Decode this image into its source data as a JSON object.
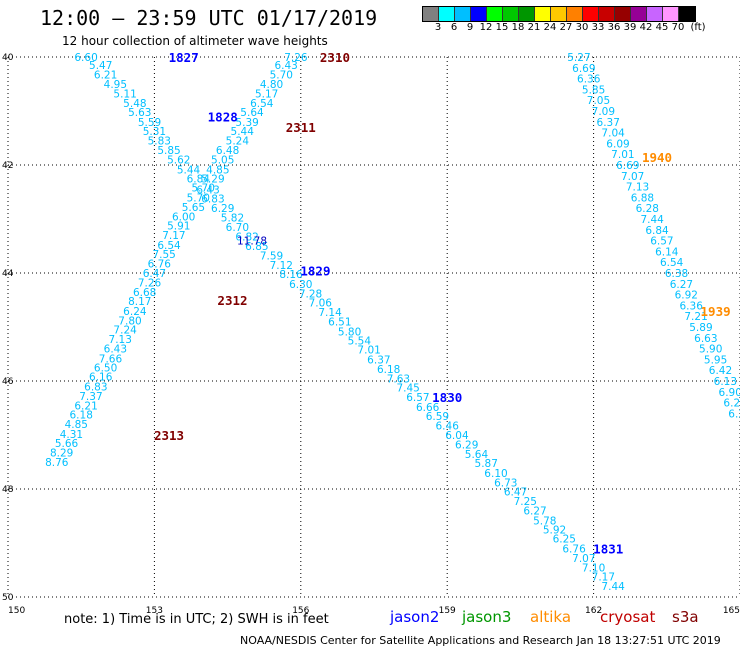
{
  "header": {
    "title": "12:00 – 23:59 UTC 01/17/2019",
    "subtitle": "12 hour collection of altimeter wave heights"
  },
  "legend": {
    "colors": [
      "#808080",
      "#00ffff",
      "#00bfff",
      "#0000ff",
      "#00ff00",
      "#00c800",
      "#009600",
      "#ffff00",
      "#ffc800",
      "#ff8000",
      "#ff0000",
      "#c80000",
      "#960000",
      "#960096",
      "#c864ff",
      "#ff96ff",
      "#000000"
    ],
    "labels": [
      "3",
      "6",
      "9",
      "12",
      "15",
      "18",
      "21",
      "24",
      "27",
      "30",
      "33",
      "36",
      "39",
      "42",
      "45",
      "70",
      "(ft)"
    ]
  },
  "axes": {
    "x_labels": [
      "150",
      "153",
      "156",
      "159",
      "162",
      "165"
    ],
    "y_labels": [
      "40",
      "42",
      "44",
      "46",
      "48",
      "50"
    ]
  },
  "chart_data": {
    "type": "scatter",
    "track_color": "#00bfff",
    "points": [
      {
        "lon": 151.6,
        "lat": 40.0,
        "v": "6.60"
      },
      {
        "lon": 151.9,
        "lat": 40.15,
        "v": "5.47"
      },
      {
        "lon": 152.0,
        "lat": 40.32,
        "v": "6.21"
      },
      {
        "lon": 152.2,
        "lat": 40.5,
        "v": "4.95"
      },
      {
        "lon": 152.4,
        "lat": 40.68,
        "v": "5.11"
      },
      {
        "lon": 152.6,
        "lat": 40.85,
        "v": "5.48"
      },
      {
        "lon": 152.7,
        "lat": 41.02,
        "v": "5.63"
      },
      {
        "lon": 152.9,
        "lat": 41.2,
        "v": "5.59"
      },
      {
        "lon": 153.0,
        "lat": 41.37,
        "v": "5.31"
      },
      {
        "lon": 153.1,
        "lat": 41.55,
        "v": "5.83"
      },
      {
        "lon": 153.3,
        "lat": 41.72,
        "v": "5.85"
      },
      {
        "lon": 153.5,
        "lat": 41.9,
        "v": "5.62"
      },
      {
        "lon": 153.7,
        "lat": 42.08,
        "v": "5.44"
      },
      {
        "lon": 153.9,
        "lat": 42.25,
        "v": "6.84"
      },
      {
        "lon": 154.1,
        "lat": 42.45,
        "v": "6.43"
      },
      {
        "lon": 154.2,
        "lat": 42.62,
        "v": "6.83"
      },
      {
        "lon": 154.4,
        "lat": 42.8,
        "v": "6.29"
      },
      {
        "lon": 154.6,
        "lat": 42.97,
        "v": "5.82"
      },
      {
        "lon": 154.7,
        "lat": 43.15,
        "v": "6.70"
      },
      {
        "lon": 154.9,
        "lat": 43.32,
        "v": "6.82"
      },
      {
        "lon": 155.1,
        "lat": 43.5,
        "v": "6.85"
      },
      {
        "lon": 155.4,
        "lat": 43.68,
        "v": "7.59"
      },
      {
        "lon": 155.6,
        "lat": 43.85,
        "v": "7.12"
      },
      {
        "lon": 155.8,
        "lat": 44.02,
        "v": "8.16"
      },
      {
        "lon": 156.0,
        "lat": 44.2,
        "v": "6.30"
      },
      {
        "lon": 156.2,
        "lat": 44.38,
        "v": "7.28"
      },
      {
        "lon": 156.4,
        "lat": 44.55,
        "v": "7.06"
      },
      {
        "lon": 156.6,
        "lat": 44.72,
        "v": "7.14"
      },
      {
        "lon": 156.8,
        "lat": 44.9,
        "v": "6.51"
      },
      {
        "lon": 157.0,
        "lat": 45.08,
        "v": "5.80"
      },
      {
        "lon": 157.2,
        "lat": 45.25,
        "v": "5.54"
      },
      {
        "lon": 157.4,
        "lat": 45.42,
        "v": "7.01"
      },
      {
        "lon": 157.6,
        "lat": 45.6,
        "v": "6.37"
      },
      {
        "lon": 157.8,
        "lat": 45.78,
        "v": "6.18"
      },
      {
        "lon": 158.0,
        "lat": 45.95,
        "v": "7.63"
      },
      {
        "lon": 158.2,
        "lat": 46.12,
        "v": "7.45"
      },
      {
        "lon": 158.4,
        "lat": 46.3,
        "v": "6.57"
      },
      {
        "lon": 158.6,
        "lat": 46.48,
        "v": "6.66"
      },
      {
        "lon": 158.8,
        "lat": 46.65,
        "v": "6.59"
      },
      {
        "lon": 159.0,
        "lat": 46.82,
        "v": "6.46"
      },
      {
        "lon": 159.2,
        "lat": 47.0,
        "v": "6.04"
      },
      {
        "lon": 159.4,
        "lat": 47.18,
        "v": "6.29"
      },
      {
        "lon": 159.6,
        "lat": 47.35,
        "v": "5.64"
      },
      {
        "lon": 159.8,
        "lat": 47.52,
        "v": "5.87"
      },
      {
        "lon": 160.0,
        "lat": 47.7,
        "v": "6.10"
      },
      {
        "lon": 160.2,
        "lat": 47.88,
        "v": "6.73"
      },
      {
        "lon": 160.4,
        "lat": 48.05,
        "v": "6.47"
      },
      {
        "lon": 160.6,
        "lat": 48.22,
        "v": "7.25"
      },
      {
        "lon": 160.8,
        "lat": 48.4,
        "v": "6.27"
      },
      {
        "lon": 161.0,
        "lat": 48.58,
        "v": "5.78"
      },
      {
        "lon": 161.2,
        "lat": 48.75,
        "v": "5.92"
      },
      {
        "lon": 161.4,
        "lat": 48.92,
        "v": "6.25"
      },
      {
        "lon": 161.6,
        "lat": 49.1,
        "v": "6.76"
      },
      {
        "lon": 161.8,
        "lat": 49.28,
        "v": "7.07"
      },
      {
        "lon": 162.0,
        "lat": 49.45,
        "v": "7.10"
      },
      {
        "lon": 162.2,
        "lat": 49.62,
        "v": "7.17"
      },
      {
        "lon": 162.4,
        "lat": 49.8,
        "v": "7.44"
      },
      {
        "lon": 155.9,
        "lat": 40.0,
        "v": "7.26"
      },
      {
        "lon": 155.7,
        "lat": 40.15,
        "v": "6.43"
      },
      {
        "lon": 155.6,
        "lat": 40.32,
        "v": "5.70"
      },
      {
        "lon": 155.4,
        "lat": 40.5,
        "v": "4.80"
      },
      {
        "lon": 155.3,
        "lat": 40.68,
        "v": "5.17"
      },
      {
        "lon": 155.2,
        "lat": 40.85,
        "v": "6.54"
      },
      {
        "lon": 155.0,
        "lat": 41.02,
        "v": "5.64"
      },
      {
        "lon": 154.9,
        "lat": 41.2,
        "v": "5.39"
      },
      {
        "lon": 154.8,
        "lat": 41.37,
        "v": "5.44"
      },
      {
        "lon": 154.7,
        "lat": 41.55,
        "v": "5.24"
      },
      {
        "lon": 154.5,
        "lat": 41.72,
        "v": "6.48"
      },
      {
        "lon": 154.4,
        "lat": 41.9,
        "v": "5.05"
      },
      {
        "lon": 154.3,
        "lat": 42.08,
        "v": "4.85"
      },
      {
        "lon": 154.2,
        "lat": 42.25,
        "v": "5.29"
      },
      {
        "lon": 154.0,
        "lat": 42.42,
        "v": "5.70"
      },
      {
        "lon": 153.9,
        "lat": 42.6,
        "v": "5.70"
      },
      {
        "lon": 153.8,
        "lat": 42.78,
        "v": "5.65"
      },
      {
        "lon": 153.6,
        "lat": 42.95,
        "v": "6.00"
      },
      {
        "lon": 153.5,
        "lat": 43.12,
        "v": "5.91"
      },
      {
        "lon": 153.4,
        "lat": 43.3,
        "v": "7.17"
      },
      {
        "lon": 153.3,
        "lat": 43.48,
        "v": "6.54"
      },
      {
        "lon": 153.2,
        "lat": 43.65,
        "v": "7.55"
      },
      {
        "lon": 153.1,
        "lat": 43.82,
        "v": "6.76"
      },
      {
        "lon": 153.0,
        "lat": 44.0,
        "v": "6.47"
      },
      {
        "lon": 152.9,
        "lat": 44.18,
        "v": "7.26"
      },
      {
        "lon": 152.8,
        "lat": 44.35,
        "v": "6.68"
      },
      {
        "lon": 152.7,
        "lat": 44.52,
        "v": "8.17"
      },
      {
        "lon": 152.6,
        "lat": 44.7,
        "v": "6.24"
      },
      {
        "lon": 152.5,
        "lat": 44.88,
        "v": "7.80"
      },
      {
        "lon": 152.4,
        "lat": 45.05,
        "v": "7.24"
      },
      {
        "lon": 152.3,
        "lat": 45.22,
        "v": "7.13"
      },
      {
        "lon": 152.2,
        "lat": 45.4,
        "v": "6.43"
      },
      {
        "lon": 152.1,
        "lat": 45.58,
        "v": "7.66"
      },
      {
        "lon": 152.0,
        "lat": 45.75,
        "v": "6.50"
      },
      {
        "lon": 151.9,
        "lat": 45.92,
        "v": "6.16"
      },
      {
        "lon": 151.8,
        "lat": 46.1,
        "v": "6.83"
      },
      {
        "lon": 151.7,
        "lat": 46.28,
        "v": "7.37"
      },
      {
        "lon": 151.6,
        "lat": 46.45,
        "v": "6.21"
      },
      {
        "lon": 151.5,
        "lat": 46.62,
        "v": "6.18"
      },
      {
        "lon": 151.4,
        "lat": 46.8,
        "v": "4.85"
      },
      {
        "lon": 151.3,
        "lat": 46.98,
        "v": "4.31"
      },
      {
        "lon": 151.2,
        "lat": 47.15,
        "v": "5.66"
      },
      {
        "lon": 151.1,
        "lat": 47.32,
        "v": "8.29"
      },
      {
        "lon": 151.0,
        "lat": 47.5,
        "v": "8.76"
      },
      {
        "lon": 161.7,
        "lat": 40.0,
        "v": "5.27"
      },
      {
        "lon": 161.8,
        "lat": 40.2,
        "v": "6.69"
      },
      {
        "lon": 161.9,
        "lat": 40.4,
        "v": "6.36"
      },
      {
        "lon": 162.0,
        "lat": 40.6,
        "v": "5.85"
      },
      {
        "lon": 162.1,
        "lat": 40.8,
        "v": "7.05"
      },
      {
        "lon": 162.2,
        "lat": 41.0,
        "v": "7.09"
      },
      {
        "lon": 162.3,
        "lat": 41.2,
        "v": "6.37"
      },
      {
        "lon": 162.4,
        "lat": 41.4,
        "v": "7.04"
      },
      {
        "lon": 162.5,
        "lat": 41.6,
        "v": "6.09"
      },
      {
        "lon": 162.6,
        "lat": 41.8,
        "v": "7.01"
      },
      {
        "lon": 162.7,
        "lat": 42.0,
        "v": "6.69"
      },
      {
        "lon": 162.8,
        "lat": 42.2,
        "v": "7.07"
      },
      {
        "lon": 162.9,
        "lat": 42.4,
        "v": "7.13"
      },
      {
        "lon": 163.0,
        "lat": 42.6,
        "v": "6.88"
      },
      {
        "lon": 163.1,
        "lat": 42.8,
        "v": "6.28"
      },
      {
        "lon": 163.2,
        "lat": 43.0,
        "v": "7.44"
      },
      {
        "lon": 163.3,
        "lat": 43.2,
        "v": "6.84"
      },
      {
        "lon": 163.4,
        "lat": 43.4,
        "v": "6.57"
      },
      {
        "lon": 163.5,
        "lat": 43.6,
        "v": "6.14"
      },
      {
        "lon": 163.6,
        "lat": 43.8,
        "v": "6.54"
      },
      {
        "lon": 163.7,
        "lat": 44.0,
        "v": "6.38"
      },
      {
        "lon": 163.8,
        "lat": 44.2,
        "v": "6.27"
      },
      {
        "lon": 163.9,
        "lat": 44.4,
        "v": "6.92"
      },
      {
        "lon": 164.0,
        "lat": 44.6,
        "v": "6.36"
      },
      {
        "lon": 164.1,
        "lat": 44.8,
        "v": "7.21"
      },
      {
        "lon": 164.2,
        "lat": 45.0,
        "v": "5.89"
      },
      {
        "lon": 164.3,
        "lat": 45.2,
        "v": "6.63"
      },
      {
        "lon": 164.4,
        "lat": 45.4,
        "v": "5.90"
      },
      {
        "lon": 164.5,
        "lat": 45.6,
        "v": "5.95"
      },
      {
        "lon": 164.6,
        "lat": 45.8,
        "v": "6.42"
      },
      {
        "lon": 164.7,
        "lat": 46.0,
        "v": "6.13"
      },
      {
        "lon": 164.8,
        "lat": 46.2,
        "v": "6.90"
      },
      {
        "lon": 164.9,
        "lat": 46.4,
        "v": "6.23"
      },
      {
        "lon": 165.0,
        "lat": 46.6,
        "v": "6.33"
      }
    ],
    "highlight_point": {
      "lon": 155.0,
      "lat": 43.4,
      "v": "11.78",
      "color": "#0000c0"
    },
    "time_labels": [
      {
        "lon": 153.6,
        "lat": 40.0,
        "t": "1827",
        "color": "#0000ff"
      },
      {
        "lon": 154.4,
        "lat": 41.1,
        "t": "1828",
        "color": "#0000ff"
      },
      {
        "lon": 156.3,
        "lat": 43.95,
        "t": "1829",
        "color": "#0000ff"
      },
      {
        "lon": 159.0,
        "lat": 46.3,
        "t": "1830",
        "color": "#0000ff"
      },
      {
        "lon": 162.3,
        "lat": 49.1,
        "t": "1831",
        "color": "#0000ff"
      },
      {
        "lon": 156.7,
        "lat": 40.0,
        "t": "2310",
        "color": "#800000"
      },
      {
        "lon": 156.0,
        "lat": 41.3,
        "t": "2311",
        "color": "#800000"
      },
      {
        "lon": 154.6,
        "lat": 44.5,
        "t": "2312",
        "color": "#800000"
      },
      {
        "lon": 153.3,
        "lat": 47.0,
        "t": "2313",
        "color": "#800000"
      },
      {
        "lon": 163.3,
        "lat": 41.85,
        "t": "1940",
        "color": "#ff8c00"
      },
      {
        "lon": 164.5,
        "lat": 44.7,
        "t": "1939",
        "color": "#ff8c00"
      }
    ],
    "x_range": [
      150,
      165
    ],
    "y_range": [
      40,
      50
    ]
  },
  "note": "note: 1) Time is in UTC; 2) SWH is in feet",
  "satellites": [
    {
      "name": "jason2",
      "color": "#0000ff"
    },
    {
      "name": "jason3",
      "color": "#009600"
    },
    {
      "name": "altika",
      "color": "#ff8c00"
    },
    {
      "name": "cryosat",
      "color": "#c00000"
    },
    {
      "name": "s3a",
      "color": "#800000"
    }
  ],
  "footer": "NOAA/NESDIS Center for Satellite Applications and Research    Jan 18 13:27:51 UTC 2019"
}
